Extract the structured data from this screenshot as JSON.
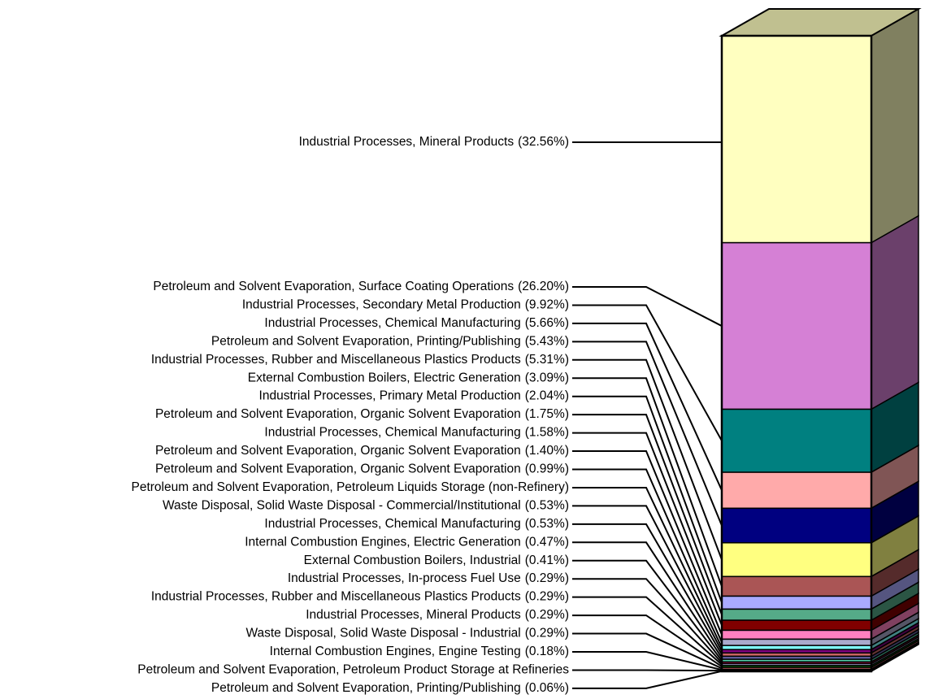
{
  "chart_data": {
    "type": "stacked-bar-3d",
    "categories": [
      "Industrial Processes, Mineral Products",
      "Petroleum and Solvent Evaporation, Surface Coating Operations",
      "Industrial Processes, Secondary Metal Production",
      "Industrial Processes, Chemical Manufacturing",
      "Petroleum and Solvent Evaporation, Printing/Publishing",
      "Industrial Processes, Rubber and Miscellaneous Plastics Products",
      "External Combustion Boilers, Electric Generation",
      "Industrial Processes, Primary Metal Production",
      "Petroleum and Solvent Evaporation, Organic Solvent Evaporation",
      "Industrial Processes, Chemical Manufacturing",
      "Petroleum and Solvent Evaporation, Organic Solvent Evaporation",
      "Petroleum and Solvent Evaporation, Organic Solvent Evaporation",
      "Petroleum and Solvent Evaporation, Petroleum Liquids Storage (non-Refinery)",
      "Waste Disposal, Solid Waste Disposal - Commercial/Institutional",
      "Industrial Processes, Chemical Manufacturing",
      "Internal Combustion Engines, Electric Generation",
      "External Combustion Boilers, Industrial",
      "Industrial Processes, In-process Fuel Use",
      "Industrial Processes, Rubber and Miscellaneous Plastics Products",
      "Industrial Processes, Mineral Products",
      "Waste Disposal, Solid Waste Disposal - Industrial",
      "Internal Combustion Engines, Engine Testing",
      "Petroleum and Solvent Evaporation, Petroleum Product Storage at Refineries",
      "Petroleum and Solvent Evaporation, Printing/Publishing"
    ],
    "values": [
      32.56,
      26.2,
      9.92,
      5.66,
      5.43,
      5.31,
      3.09,
      2.04,
      1.75,
      1.58,
      1.4,
      0.99,
      0.64,
      0.53,
      0.53,
      0.47,
      0.41,
      0.29,
      0.29,
      0.29,
      0.29,
      0.18,
      0.09,
      0.06
    ],
    "value_labels": [
      "(32.56%)",
      "(26.20%)",
      "(9.92%)",
      "(5.66%)",
      "(5.43%)",
      "(5.31%)",
      "(3.09%)",
      "(2.04%)",
      "(1.75%)",
      "(1.58%)",
      "(1.40%)",
      "(0.99%)",
      null,
      "(0.53%)",
      "(0.53%)",
      "(0.47%)",
      "(0.41%)",
      "(0.29%)",
      "(0.29%)",
      "(0.29%)",
      "(0.29%)",
      "(0.18%)",
      null,
      "(0.06%)"
    ],
    "colors": [
      "#FFFFC0",
      "#D580D5",
      "#008080",
      "#FFAAAA",
      "#000080",
      "#FFFF80",
      "#AA5555",
      "#AAAAFF",
      "#55AA88",
      "#800000",
      "#FF80C0",
      "#AAAACC",
      "#80FFFF",
      "#800080",
      "#CC6666",
      "#6666AA",
      "#55CCAA",
      "#AA0044",
      "#CCCCFF",
      "#008000",
      "#FF8080",
      "#0000CC",
      "#993366",
      "#333333"
    ],
    "ylim": [
      0,
      100
    ]
  }
}
